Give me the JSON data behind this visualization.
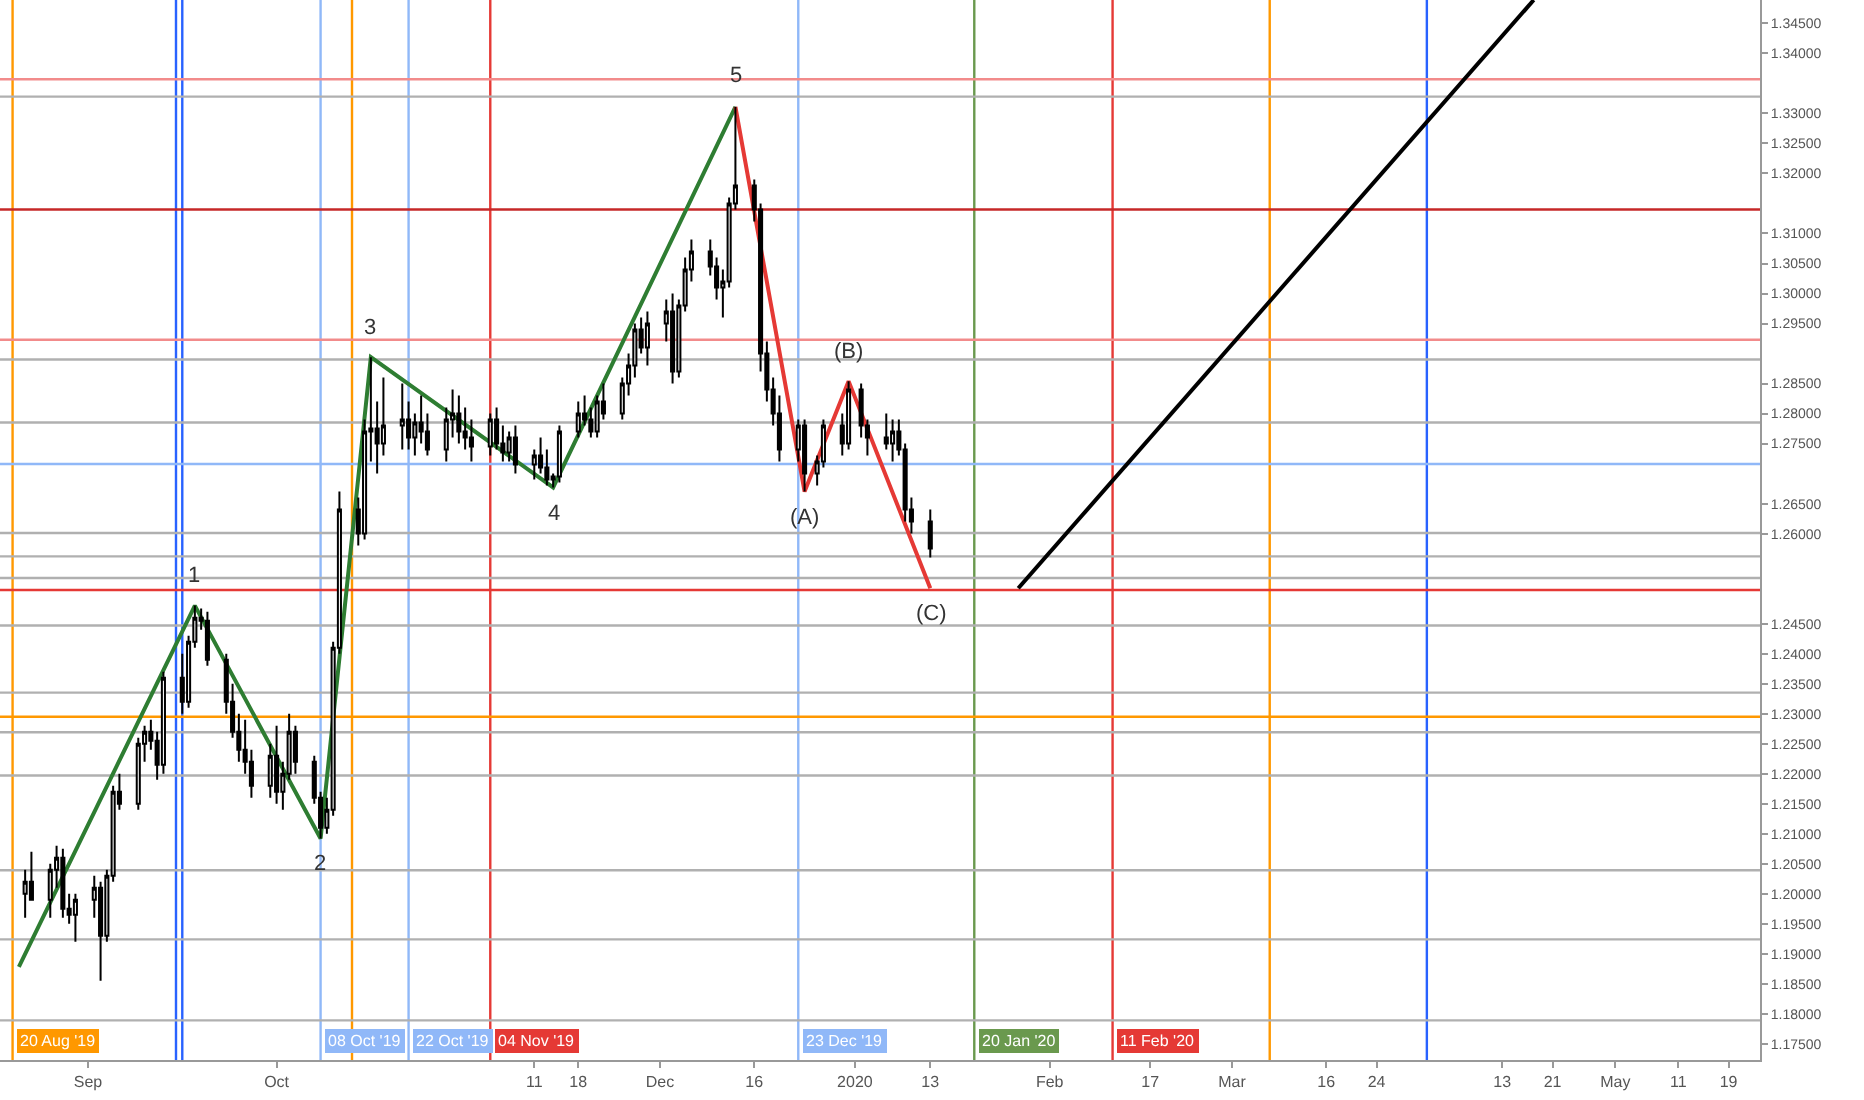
{
  "chart_data": {
    "type": "candlestick",
    "x": [
      "2019-08-22",
      "2019-08-23",
      "2019-08-26",
      "2019-08-27",
      "2019-08-28",
      "2019-08-29",
      "2019-08-30",
      "2019-09-02",
      "2019-09-03",
      "2019-09-04",
      "2019-09-05",
      "2019-09-06",
      "2019-09-09",
      "2019-09-10",
      "2019-09-11",
      "2019-09-12",
      "2019-09-13",
      "2019-09-16",
      "2019-09-17",
      "2019-09-18",
      "2019-09-19",
      "2019-09-20",
      "2019-09-23",
      "2019-09-24",
      "2019-09-25",
      "2019-09-26",
      "2019-09-27",
      "2019-09-30",
      "2019-10-01",
      "2019-10-02",
      "2019-10-03",
      "2019-10-04",
      "2019-10-07",
      "2019-10-08",
      "2019-10-09",
      "2019-10-10",
      "2019-10-11",
      "2019-10-14",
      "2019-10-15",
      "2019-10-16",
      "2019-10-17",
      "2019-10-18",
      "2019-10-21",
      "2019-10-22",
      "2019-10-23",
      "2019-10-24",
      "2019-10-25",
      "2019-10-28",
      "2019-10-29",
      "2019-10-30",
      "2019-10-31",
      "2019-11-01",
      "2019-11-04",
      "2019-11-05",
      "2019-11-06",
      "2019-11-07",
      "2019-11-08",
      "2019-11-11",
      "2019-11-12",
      "2019-11-13",
      "2019-11-14",
      "2019-11-15",
      "2019-11-18",
      "2019-11-19",
      "2019-11-20",
      "2019-11-21",
      "2019-11-22",
      "2019-11-25",
      "2019-11-26",
      "2019-11-27",
      "2019-11-28",
      "2019-11-29",
      "2019-12-02",
      "2019-12-03",
      "2019-12-04",
      "2019-12-05",
      "2019-12-06",
      "2019-12-09",
      "2019-12-10",
      "2019-12-11",
      "2019-12-12",
      "2019-12-13",
      "2019-12-16",
      "2019-12-17",
      "2019-12-18",
      "2019-12-19",
      "2019-12-20",
      "2019-12-23",
      "2019-12-24",
      "2019-12-26",
      "2019-12-27",
      "2019-12-30",
      "2019-12-31",
      "2020-01-02",
      "2020-01-03",
      "2020-01-06",
      "2020-01-07",
      "2020-01-08",
      "2020-01-09",
      "2020-01-10",
      "2020-01-13"
    ],
    "ohlc": [
      [
        1.2,
        1.204,
        1.196,
        1.202
      ],
      [
        1.202,
        1.207,
        1.199,
        1.199
      ],
      [
        1.199,
        1.205,
        1.196,
        1.204
      ],
      [
        1.204,
        1.208,
        1.201,
        1.206
      ],
      [
        1.206,
        1.2075,
        1.196,
        1.1975
      ],
      [
        1.1975,
        1.2,
        1.195,
        1.1965
      ],
      [
        1.1965,
        1.2,
        1.192,
        1.199
      ],
      [
        1.199,
        1.203,
        1.196,
        1.201
      ],
      [
        1.201,
        1.202,
        1.1855,
        1.193
      ],
      [
        1.193,
        1.204,
        1.192,
        1.203
      ],
      [
        1.203,
        1.218,
        1.202,
        1.217
      ],
      [
        1.217,
        1.22,
        1.214,
        1.215
      ],
      [
        1.215,
        1.226,
        1.214,
        1.225
      ],
      [
        1.225,
        1.228,
        1.222,
        1.227
      ],
      [
        1.227,
        1.229,
        1.224,
        1.2255
      ],
      [
        1.2255,
        1.227,
        1.219,
        1.2215
      ],
      [
        1.2215,
        1.237,
        1.22,
        1.236
      ],
      [
        1.236,
        1.24,
        1.23,
        1.232
      ],
      [
        1.232,
        1.243,
        1.231,
        1.242
      ],
      [
        1.242,
        1.248,
        1.241,
        1.246
      ],
      [
        1.246,
        1.2475,
        1.244,
        1.2455
      ],
      [
        1.2455,
        1.247,
        1.238,
        1.239
      ],
      [
        1.239,
        1.24,
        1.23,
        1.232
      ],
      [
        1.232,
        1.235,
        1.226,
        1.227
      ],
      [
        1.227,
        1.23,
        1.222,
        1.224
      ],
      [
        1.224,
        1.229,
        1.22,
        1.222
      ],
      [
        1.222,
        1.224,
        1.216,
        1.218
      ],
      [
        1.218,
        1.225,
        1.216,
        1.223
      ],
      [
        1.223,
        1.228,
        1.215,
        1.217
      ],
      [
        1.217,
        1.222,
        1.214,
        1.22
      ],
      [
        1.22,
        1.23,
        1.219,
        1.227
      ],
      [
        1.227,
        1.228,
        1.22,
        1.222
      ],
      [
        1.222,
        1.223,
        1.215,
        1.216
      ],
      [
        1.216,
        1.217,
        1.2092,
        1.211
      ],
      [
        1.211,
        1.216,
        1.21,
        1.214
      ],
      [
        1.214,
        1.242,
        1.213,
        1.241
      ],
      [
        1.241,
        1.267,
        1.24,
        1.264
      ],
      [
        1.264,
        1.266,
        1.258,
        1.26
      ],
      [
        1.26,
        1.279,
        1.259,
        1.277
      ],
      [
        1.277,
        1.2894,
        1.272,
        1.2775
      ],
      [
        1.2775,
        1.282,
        1.27,
        1.275
      ],
      [
        1.275,
        1.286,
        1.273,
        1.278
      ],
      [
        1.278,
        1.285,
        1.274,
        1.279
      ],
      [
        1.279,
        1.282,
        1.274,
        1.276
      ],
      [
        1.276,
        1.28,
        1.273,
        1.2785
      ],
      [
        1.2785,
        1.283,
        1.275,
        1.277
      ],
      [
        1.277,
        1.28,
        1.273,
        1.274
      ],
      [
        1.274,
        1.281,
        1.272,
        1.279
      ],
      [
        1.279,
        1.284,
        1.276,
        1.28
      ],
      [
        1.28,
        1.283,
        1.275,
        1.277
      ],
      [
        1.277,
        1.281,
        1.274,
        1.276
      ],
      [
        1.276,
        1.279,
        1.272,
        1.2745
      ],
      [
        1.2745,
        1.28,
        1.273,
        1.279
      ],
      [
        1.279,
        1.281,
        1.274,
        1.275
      ],
      [
        1.275,
        1.278,
        1.272,
        1.2735
      ],
      [
        1.2735,
        1.277,
        1.272,
        1.276
      ],
      [
        1.276,
        1.278,
        1.27,
        1.2715
      ],
      [
        1.2715,
        1.274,
        1.269,
        1.273
      ],
      [
        1.273,
        1.276,
        1.27,
        1.271
      ],
      [
        1.271,
        1.274,
        1.268,
        1.269
      ],
      [
        1.269,
        1.27,
        1.2677,
        1.2695
      ],
      [
        1.2695,
        1.278,
        1.2685,
        1.277
      ],
      [
        1.277,
        1.282,
        1.276,
        1.28
      ],
      [
        1.28,
        1.283,
        1.278,
        1.279
      ],
      [
        1.279,
        1.281,
        1.276,
        1.277
      ],
      [
        1.277,
        1.283,
        1.276,
        1.282
      ],
      [
        1.282,
        1.285,
        1.279,
        1.28
      ],
      [
        1.28,
        1.286,
        1.279,
        1.285
      ],
      [
        1.285,
        1.29,
        1.283,
        1.288
      ],
      [
        1.288,
        1.295,
        1.286,
        1.294
      ],
      [
        1.294,
        1.296,
        1.29,
        1.291
      ],
      [
        1.291,
        1.297,
        1.288,
        1.295
      ],
      [
        1.295,
        1.299,
        1.292,
        1.297
      ],
      [
        1.297,
        1.3,
        1.285,
        1.287
      ],
      [
        1.287,
        1.299,
        1.286,
        1.298
      ],
      [
        1.298,
        1.306,
        1.297,
        1.304
      ],
      [
        1.304,
        1.309,
        1.302,
        1.307
      ],
      [
        1.307,
        1.309,
        1.303,
        1.3045
      ],
      [
        1.3045,
        1.306,
        1.299,
        1.301
      ],
      [
        1.301,
        1.304,
        1.296,
        1.302
      ],
      [
        1.302,
        1.316,
        1.301,
        1.315
      ],
      [
        1.315,
        1.3311,
        1.314,
        1.318
      ],
      [
        1.318,
        1.319,
        1.312,
        1.314
      ],
      [
        1.314,
        1.315,
        1.287,
        1.29
      ],
      [
        1.29,
        1.292,
        1.282,
        1.284
      ],
      [
        1.284,
        1.286,
        1.278,
        1.28
      ],
      [
        1.28,
        1.283,
        1.272,
        1.274
      ],
      [
        1.274,
        1.279,
        1.272,
        1.278
      ],
      [
        1.278,
        1.279,
        1.267,
        1.27
      ],
      [
        1.27,
        1.273,
        1.268,
        1.272
      ],
      [
        1.272,
        1.279,
        1.271,
        1.278
      ],
      [
        1.278,
        1.28,
        1.273,
        1.275
      ],
      [
        1.275,
        1.2854,
        1.274,
        1.284
      ],
      [
        1.284,
        1.285,
        1.276,
        1.278
      ],
      [
        1.278,
        1.279,
        1.273,
        1.276
      ],
      [
        1.276,
        1.28,
        1.274,
        1.275
      ],
      [
        1.275,
        1.279,
        1.272,
        1.277
      ],
      [
        1.277,
        1.279,
        1.273,
        1.274
      ],
      [
        1.274,
        1.275,
        1.262,
        1.264
      ],
      [
        1.264,
        1.266,
        1.26,
        1.262
      ],
      [
        1.262,
        1.264,
        1.256,
        1.2575
      ]
    ],
    "series": [
      {
        "type": "line",
        "color": "#2e7d32",
        "x": [
          "2019-08-21",
          "2019-09-18",
          "2019-10-08",
          "2019-10-16",
          "2019-11-14",
          "2019-12-13"
        ],
        "values": [
          1.1878,
          1.248,
          1.2092,
          1.2894,
          1.2677,
          1.3311
        ]
      },
      {
        "type": "line",
        "color": "#e53935",
        "x": [
          "2019-12-13",
          "2019-12-24",
          "2019-12-31",
          "2020-01-13"
        ],
        "values": [
          1.3311,
          1.267,
          1.2854,
          1.2509
        ]
      },
      {
        "type": "line",
        "color": "#000000",
        "x": [
          "2020-01-27",
          "2020-04-18"
        ],
        "values": [
          1.2509,
          1.3489
        ]
      }
    ],
    "annotations": [
      {
        "text": "1",
        "x": "2019-09-18",
        "y": 1.248
      },
      {
        "text": "2",
        "x": "2019-10-08",
        "y": 1.2092
      },
      {
        "text": "3",
        "x": "2019-10-16",
        "y": 1.2894
      },
      {
        "text": "4",
        "x": "2019-11-14",
        "y": 1.2677
      },
      {
        "text": "5",
        "x": "2019-12-13",
        "y": 1.3311
      },
      {
        "text": "(A)",
        "x": "2019-12-24",
        "y": 1.267
      },
      {
        "text": "(B)",
        "x": "2019-12-31",
        "y": 1.2854
      },
      {
        "text": "(C)",
        "x": "2020-01-13",
        "y": 1.2509
      }
    ],
    "ref_lines": [
      {
        "axis": "x",
        "value": "2019-08-20",
        "label": "20 Aug '19",
        "color": "#ff9800"
      },
      {
        "axis": "x",
        "value": "2019-09-15",
        "label": null,
        "color": "#2962ff"
      },
      {
        "axis": "x",
        "value": "2019-09-16",
        "label": null,
        "color": "#2962ff"
      },
      {
        "axis": "x",
        "value": "2019-10-08",
        "label": "08 Oct '19",
        "color": "#90b8f8"
      },
      {
        "axis": "x",
        "value": "2019-10-13",
        "label": null,
        "color": "#ff9800"
      },
      {
        "axis": "x",
        "value": "2019-10-22",
        "label": "22 Oct '19",
        "color": "#90b8f8"
      },
      {
        "axis": "x",
        "value": "2019-11-04",
        "label": "04 Nov '19",
        "color": "#e53935"
      },
      {
        "axis": "x",
        "value": "2019-12-23",
        "label": "23 Dec '19",
        "color": "#90b8f8"
      },
      {
        "axis": "x",
        "value": "2020-01-20",
        "label": "20 Jan '20",
        "color": "#6a994e"
      },
      {
        "axis": "x",
        "value": "2020-02-11",
        "label": "11 Feb '20",
        "color": "#e53935"
      },
      {
        "axis": "x",
        "value": "2020-03-07",
        "label": null,
        "color": "#ff9800"
      },
      {
        "axis": "x",
        "value": "2020-04-01",
        "label": null,
        "color": "#2962ff"
      },
      {
        "axis": "y",
        "value": 1.3357,
        "label": null,
        "color": "#f28b8b"
      },
      {
        "axis": "y",
        "value": 1.314,
        "label": null,
        "color": "#c62828"
      },
      {
        "axis": "y",
        "value": 1.2923,
        "label": null,
        "color": "#f28b8b"
      },
      {
        "axis": "y",
        "value": 1.2716,
        "label": null,
        "color": "#90b8f8"
      },
      {
        "axis": "y",
        "value": 1.2506,
        "label": null,
        "color": "#e53935"
      },
      {
        "axis": "y",
        "value": 1.2295,
        "label": null,
        "color": "#ff9800"
      },
      {
        "axis": "y",
        "value": 1.3328,
        "label": null,
        "color": "#b0b0b0"
      },
      {
        "axis": "y",
        "value": 1.289,
        "label": null,
        "color": "#b0b0b0"
      },
      {
        "axis": "y",
        "value": 1.2785,
        "label": null,
        "color": "#b0b0b0"
      },
      {
        "axis": "y",
        "value": 1.2601,
        "label": null,
        "color": "#b0b0b0"
      },
      {
        "axis": "y",
        "value": 1.2562,
        "label": null,
        "color": "#b0b0b0"
      },
      {
        "axis": "y",
        "value": 1.2526,
        "label": null,
        "color": "#b0b0b0"
      },
      {
        "axis": "y",
        "value": 1.2447,
        "label": null,
        "color": "#b0b0b0"
      },
      {
        "axis": "y",
        "value": 1.2335,
        "label": null,
        "color": "#b0b0b0"
      },
      {
        "axis": "y",
        "value": 1.2269,
        "label": null,
        "color": "#b0b0b0"
      },
      {
        "axis": "y",
        "value": 1.2197,
        "label": null,
        "color": "#b0b0b0"
      },
      {
        "axis": "y",
        "value": 1.2039,
        "label": null,
        "color": "#b0b0b0"
      },
      {
        "axis": "y",
        "value": 1.1924,
        "label": null,
        "color": "#b0b0b0"
      },
      {
        "axis": "y",
        "value": 1.1789,
        "label": null,
        "color": "#b0b0b0"
      }
    ],
    "xlim": [
      "2019-08-18",
      "2020-05-24"
    ],
    "xticks": [
      {
        "value": "2019-09-01",
        "label": "Sep"
      },
      {
        "value": "2019-10-01",
        "label": "Oct"
      },
      {
        "value": "2019-11-11",
        "label": "11"
      },
      {
        "value": "2019-11-18",
        "label": "18"
      },
      {
        "value": "2019-12-01",
        "label": "Dec"
      },
      {
        "value": "2019-12-16",
        "label": "16"
      },
      {
        "value": "2020-01-01",
        "label": "2020"
      },
      {
        "value": "2020-01-13",
        "label": "13"
      },
      {
        "value": "2020-02-01",
        "label": "Feb"
      },
      {
        "value": "2020-02-17",
        "label": "17"
      },
      {
        "value": "2020-03-01",
        "label": "Mar"
      },
      {
        "value": "2020-03-16",
        "label": "16"
      },
      {
        "value": "2020-03-24",
        "label": "24"
      },
      {
        "value": "2020-04-13",
        "label": "13"
      },
      {
        "value": "2020-04-21",
        "label": "21"
      },
      {
        "value": "2020-05-01",
        "label": "May"
      },
      {
        "value": "2020-05-11",
        "label": "11"
      },
      {
        "value": "2020-05-19",
        "label": "19"
      }
    ],
    "ylim": [
      1.1723,
      1.3489
    ],
    "yticks": [
      {
        "value": 1.175,
        "label": "1.17500"
      },
      {
        "value": 1.18,
        "label": "1.18000"
      },
      {
        "value": 1.185,
        "label": "1.18500"
      },
      {
        "value": 1.19,
        "label": "1.19000"
      },
      {
        "value": 1.195,
        "label": "1.19500"
      },
      {
        "value": 1.2,
        "label": "1.20000"
      },
      {
        "value": 1.205,
        "label": "1.20500"
      },
      {
        "value": 1.21,
        "label": "1.21000"
      },
      {
        "value": 1.215,
        "label": "1.21500"
      },
      {
        "value": 1.22,
        "label": "1.22000"
      },
      {
        "value": 1.225,
        "label": "1.22500"
      },
      {
        "value": 1.23,
        "label": "1.23000"
      },
      {
        "value": 1.235,
        "label": "1.23500"
      },
      {
        "value": 1.24,
        "label": "1.24000"
      },
      {
        "value": 1.245,
        "label": "1.24500"
      },
      {
        "value": 1.26,
        "label": "1.26000"
      },
      {
        "value": 1.265,
        "label": "1.26500"
      },
      {
        "value": 1.275,
        "label": "1.27500"
      },
      {
        "value": 1.28,
        "label": "1.28000"
      },
      {
        "value": 1.285,
        "label": "1.28500"
      },
      {
        "value": 1.295,
        "label": "1.29500"
      },
      {
        "value": 1.3,
        "label": "1.30000"
      },
      {
        "value": 1.305,
        "label": "1.30500"
      },
      {
        "value": 1.31,
        "label": "1.31000"
      },
      {
        "value": 1.32,
        "label": "1.32000"
      },
      {
        "value": 1.325,
        "label": "1.32500"
      },
      {
        "value": 1.33,
        "label": "1.33000"
      },
      {
        "value": 1.34,
        "label": "1.34000"
      },
      {
        "value": 1.345,
        "label": "1.34500"
      }
    ],
    "grid": false
  }
}
